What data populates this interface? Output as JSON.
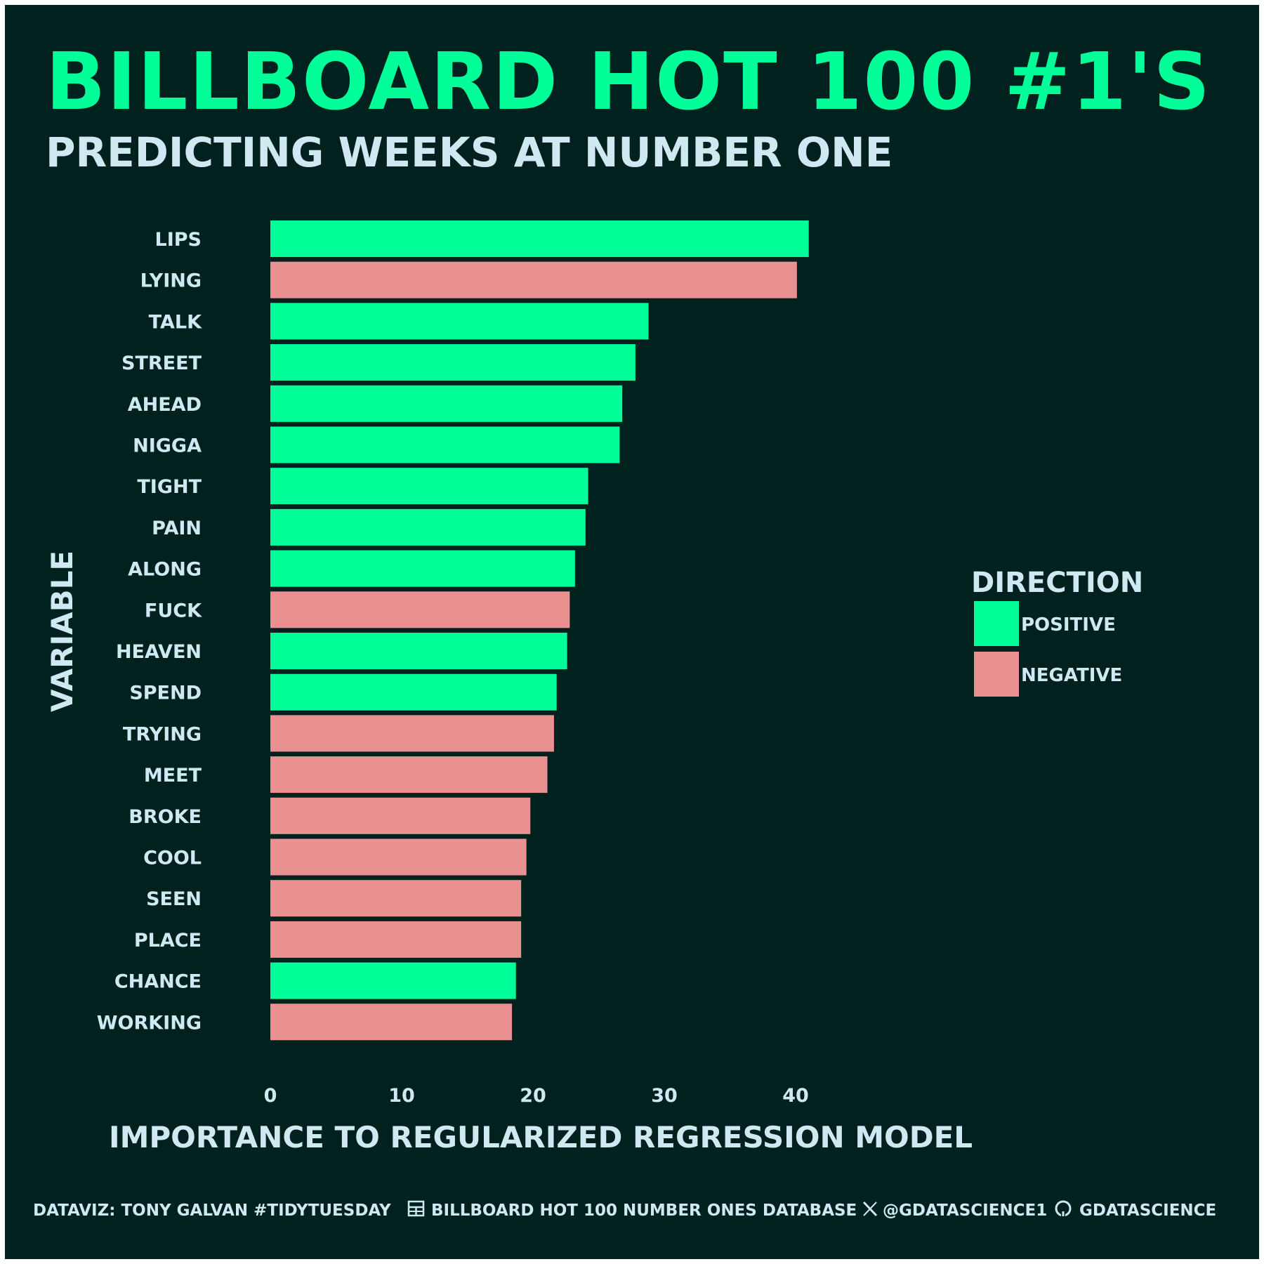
{
  "colors": {
    "background": "#00211d",
    "positive": "#00ff99",
    "negative": "#e99191",
    "text": "#d0e8f2",
    "title": "#00ff99"
  },
  "header": {
    "title": "BILLBOARD HOT 100 #1'S",
    "subtitle": "PREDICTING WEEKS AT NUMBER ONE"
  },
  "chart_data": {
    "type": "bar",
    "orientation": "horizontal",
    "categories": [
      "LIPS",
      "LYING",
      "TALK",
      "STREET",
      "AHEAD",
      "NIGGA",
      "TIGHT",
      "PAIN",
      "ALONG",
      "FUCK",
      "HEAVEN",
      "SPEND",
      "TRYING",
      "MEET",
      "BROKE",
      "COOL",
      "SEEN",
      "PLACE",
      "CHANCE",
      "WORKING"
    ],
    "values": [
      41.0,
      40.1,
      28.8,
      27.8,
      26.8,
      26.6,
      24.2,
      24.0,
      23.2,
      22.8,
      22.6,
      21.8,
      21.6,
      21.1,
      19.8,
      19.5,
      19.1,
      19.1,
      18.7,
      18.4
    ],
    "direction": [
      "POSITIVE",
      "NEGATIVE",
      "POSITIVE",
      "POSITIVE",
      "POSITIVE",
      "POSITIVE",
      "POSITIVE",
      "POSITIVE",
      "POSITIVE",
      "NEGATIVE",
      "POSITIVE",
      "POSITIVE",
      "NEGATIVE",
      "NEGATIVE",
      "NEGATIVE",
      "NEGATIVE",
      "NEGATIVE",
      "NEGATIVE",
      "POSITIVE",
      "NEGATIVE"
    ],
    "xlabel": "IMPORTANCE TO REGULARIZED REGRESSION MODEL",
    "ylabel": "VARIABLE",
    "xlim": [
      0,
      42
    ],
    "xticks": [
      0,
      10,
      20,
      30,
      40
    ],
    "grid": false,
    "legend": {
      "title": "DIRECTION",
      "placement": "right",
      "entries": [
        "POSITIVE",
        "NEGATIVE"
      ]
    }
  },
  "caption": {
    "author": "DATAVIZ: TONY GALVAN #TIDYTUESDAY",
    "source": "BILLBOARD HOT 100 NUMBER ONES DATABASE",
    "twitter": "@GDATASCIENCE1",
    "github": "GDATASCIENCE",
    "source_icon": "table-icon",
    "twitter_icon": "x-logo-icon",
    "github_icon": "github-icon"
  }
}
